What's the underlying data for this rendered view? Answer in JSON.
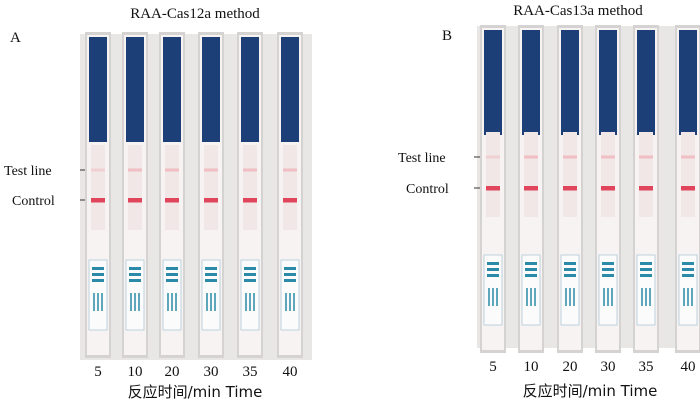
{
  "panels": [
    {
      "label": "A",
      "title": "RAA-Cas12a method",
      "test_line": "Test line",
      "control": "Control",
      "strips": [
        "5",
        "10",
        "20",
        "30",
        "35",
        "40"
      ],
      "x_label": "反应时间/min Time"
    },
    {
      "label": "B",
      "title": "RAA-Cas13a method",
      "test_line": "Test line",
      "control": "Control",
      "strips": [
        "5",
        "10",
        "20",
        "30",
        "35",
        "40"
      ],
      "x_label": "反应时间/min Time"
    }
  ]
}
